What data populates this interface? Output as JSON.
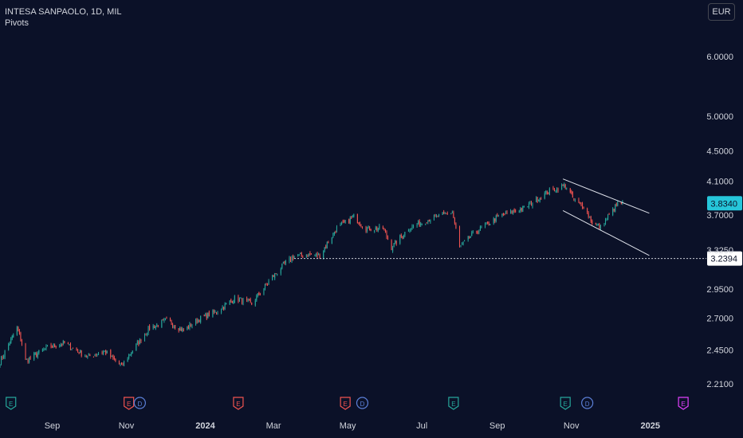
{
  "header": {
    "symbol": "INTESA SANPAOLO, 1D, MIL",
    "indicator": "Pivots"
  },
  "currency_button": "EUR",
  "colors": {
    "background": "#0b1128",
    "up": "#26a69a",
    "down": "#ef5350",
    "text": "#d1d4dc",
    "last_price_tag": "#26c6da",
    "pivot_tag": "#ffffff",
    "event_earnings": "#26a69a",
    "event_dividend": "#5b7fd6",
    "event_earnings_red": "#ef5350",
    "event_future": "#e040fb"
  },
  "chart_data": {
    "type": "candlestick",
    "title": "INTESA SANPAOLO, 1D, MIL",
    "scale": "log",
    "ylim": [
      2.12,
      6.75
    ],
    "y_ticks": [
      "6.0000",
      "5.0000",
      "4.5000",
      "4.1000",
      "3.7000",
      "3.3250",
      "2.9500",
      "2.7000",
      "2.4500",
      "2.2100"
    ],
    "x_ticks": [
      "Sep",
      "Nov",
      "2024",
      "Mar",
      "May",
      "Jul",
      "Sep",
      "Nov",
      "2025"
    ],
    "last_price": "3.8340",
    "pivot_level": "3.2394",
    "anchors": [
      [
        "2023-07-24",
        2.36
      ],
      [
        "2023-08-07",
        2.62
      ],
      [
        "2023-08-11",
        2.5
      ],
      [
        "2023-08-14",
        2.37
      ],
      [
        "2023-09-01",
        2.47
      ],
      [
        "2023-09-15",
        2.5
      ],
      [
        "2023-10-04",
        2.4
      ],
      [
        "2023-10-18",
        2.44
      ],
      [
        "2023-11-01",
        2.33
      ],
      [
        "2023-11-10",
        2.45
      ],
      [
        "2023-11-24",
        2.62
      ],
      [
        "2023-12-08",
        2.68
      ],
      [
        "2023-12-22",
        2.6
      ],
      [
        "2024-01-05",
        2.7
      ],
      [
        "2024-01-19",
        2.76
      ],
      [
        "2024-02-02",
        2.87
      ],
      [
        "2024-02-16",
        2.82
      ],
      [
        "2024-03-01",
        3.02
      ],
      [
        "2024-03-15",
        3.2
      ],
      [
        "2024-03-22",
        3.26
      ],
      [
        "2024-04-05",
        3.28
      ],
      [
        "2024-04-12",
        3.27
      ],
      [
        "2024-04-26",
        3.55
      ],
      [
        "2024-05-10",
        3.68
      ],
      [
        "2024-05-20",
        3.55
      ],
      [
        "2024-06-03",
        3.55
      ],
      [
        "2024-06-10",
        3.35
      ],
      [
        "2024-06-24",
        3.55
      ],
      [
        "2024-07-12",
        3.66
      ],
      [
        "2024-07-30",
        3.73
      ],
      [
        "2024-08-05",
        3.35
      ],
      [
        "2024-08-16",
        3.49
      ],
      [
        "2024-09-06",
        3.68
      ],
      [
        "2024-09-27",
        3.78
      ],
      [
        "2024-10-18",
        3.98
      ],
      [
        "2024-10-31",
        4.05
      ],
      [
        "2024-11-08",
        3.85
      ],
      [
        "2024-11-15",
        3.8
      ],
      [
        "2024-11-22",
        3.62
      ],
      [
        "2024-11-29",
        3.56
      ],
      [
        "2024-12-06",
        3.7
      ],
      [
        "2024-12-13",
        3.83
      ],
      [
        "2024-12-17",
        3.834
      ]
    ],
    "channel": {
      "upper": [
        [
          "2024-10-29",
          4.13
        ],
        [
          "2025-01-08",
          3.72
        ]
      ],
      "lower": [
        [
          "2024-10-29",
          3.75
        ],
        [
          "2025-01-08",
          3.27
        ]
      ]
    },
    "events": [
      {
        "label": "E",
        "date": "2023-08-02",
        "kind": "earnings"
      },
      {
        "label": "E",
        "date": "2023-11-07",
        "kind": "earnings_red"
      },
      {
        "label": "D",
        "date": "2023-11-16",
        "kind": "dividend"
      },
      {
        "label": "E",
        "date": "2024-02-05",
        "kind": "earnings_red"
      },
      {
        "label": "E",
        "date": "2024-05-03",
        "kind": "earnings_red"
      },
      {
        "label": "D",
        "date": "2024-05-17",
        "kind": "dividend"
      },
      {
        "label": "E",
        "date": "2024-07-31",
        "kind": "earnings"
      },
      {
        "label": "E",
        "date": "2024-10-31",
        "kind": "earnings"
      },
      {
        "label": "D",
        "date": "2024-11-18",
        "kind": "dividend"
      },
      {
        "label": "E",
        "date": "2025-02-05",
        "kind": "future"
      }
    ]
  }
}
